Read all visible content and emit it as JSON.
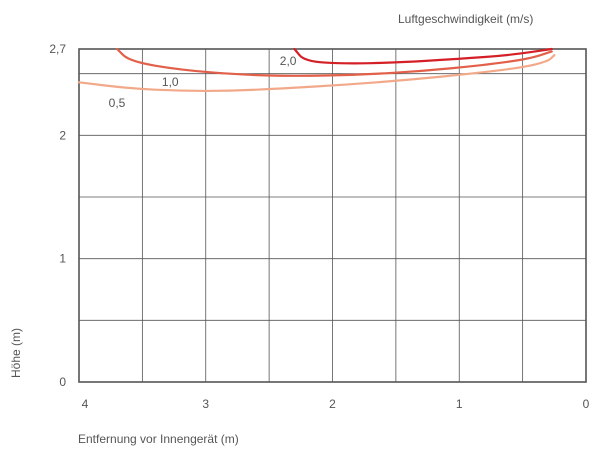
{
  "chart_data": {
    "type": "line",
    "title": "",
    "legend_title": "Luftgeschwindigkeit (m/s)",
    "xlabel": "Entfernung vor Innengerät (m)",
    "ylabel": "Höhe (m)",
    "x_reversed": true,
    "xlim": [
      4,
      0
    ],
    "ylim": [
      0,
      2.7
    ],
    "x_ticks": [
      "4",
      "3",
      "2",
      "1",
      "0"
    ],
    "y_ticks": [
      "0",
      "1",
      "2",
      "2,7"
    ],
    "grid": true,
    "colors": {
      "axis": "#555555",
      "grid": "#555555"
    },
    "series": [
      {
        "name": "2,0",
        "color": "#d41f26",
        "label_pos": [
          2.35,
          2.57
        ],
        "points": [
          [
            2.3,
            2.7
          ],
          [
            2.22,
            2.6
          ],
          [
            1.9,
            2.58
          ],
          [
            1.5,
            2.59
          ],
          [
            1.0,
            2.62
          ],
          [
            0.6,
            2.65
          ],
          [
            0.27,
            2.7
          ]
        ]
      },
      {
        "name": "1,0",
        "color": "#e2604a",
        "label_pos": [
          3.28,
          2.4
        ],
        "points": [
          [
            3.7,
            2.7
          ],
          [
            3.6,
            2.6
          ],
          [
            3.2,
            2.53
          ],
          [
            2.7,
            2.49
          ],
          [
            2.3,
            2.48
          ],
          [
            1.8,
            2.49
          ],
          [
            1.3,
            2.52
          ],
          [
            0.8,
            2.57
          ],
          [
            0.45,
            2.62
          ],
          [
            0.27,
            2.68
          ]
        ]
      },
      {
        "name": "0,5",
        "color": "#f2a98a",
        "label_pos": [
          3.7,
          2.23
        ],
        "points": [
          [
            4.0,
            2.43
          ],
          [
            3.6,
            2.38
          ],
          [
            3.2,
            2.36
          ],
          [
            2.8,
            2.36
          ],
          [
            2.4,
            2.38
          ],
          [
            1.9,
            2.41
          ],
          [
            1.4,
            2.45
          ],
          [
            0.9,
            2.5
          ],
          [
            0.5,
            2.55
          ],
          [
            0.3,
            2.6
          ],
          [
            0.25,
            2.65
          ]
        ]
      }
    ]
  }
}
